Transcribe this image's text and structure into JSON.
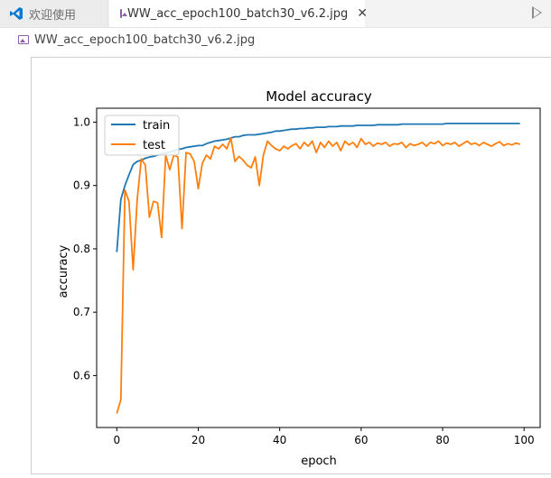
{
  "tabs": [
    {
      "label": "欢迎使用",
      "icon": "vscode-logo-icon",
      "active": false
    },
    {
      "label": "WW_acc_epoch100_batch30_v6.2.jpg",
      "icon": "image-file-icon",
      "active": true
    }
  ],
  "breadcrumb": {
    "label": "WW_acc_epoch100_batch30_v6.2.jpg"
  },
  "colors": {
    "train": "#1f77b4",
    "test": "#ff7f0e",
    "accent": "#0078d4"
  },
  "chart_data": {
    "type": "line",
    "title": "Model accuracy",
    "xlabel": "epoch",
    "ylabel": "accuracy",
    "xlim": [
      -4.95,
      103.95
    ],
    "ylim": [
      0.518,
      1.022
    ],
    "xticks": [
      0,
      20,
      40,
      60,
      80,
      100
    ],
    "yticks": [
      0.6,
      0.7,
      0.8,
      0.9,
      1.0
    ],
    "xtick_labels": [
      "0",
      "20",
      "40",
      "60",
      "80",
      "100"
    ],
    "ytick_labels": [
      "0.6",
      "0.7",
      "0.8",
      "0.9",
      "1.0"
    ],
    "legend": "top-left",
    "grid": false,
    "x": [
      0,
      1,
      2,
      3,
      4,
      5,
      6,
      7,
      8,
      9,
      10,
      11,
      12,
      13,
      14,
      15,
      16,
      17,
      18,
      19,
      20,
      21,
      22,
      23,
      24,
      25,
      26,
      27,
      28,
      29,
      30,
      31,
      32,
      33,
      34,
      35,
      36,
      37,
      38,
      39,
      40,
      41,
      42,
      43,
      44,
      45,
      46,
      47,
      48,
      49,
      50,
      51,
      52,
      53,
      54,
      55,
      56,
      57,
      58,
      59,
      60,
      61,
      62,
      63,
      64,
      65,
      66,
      67,
      68,
      69,
      70,
      71,
      72,
      73,
      74,
      75,
      76,
      77,
      78,
      79,
      80,
      81,
      82,
      83,
      84,
      85,
      86,
      87,
      88,
      89,
      90,
      91,
      92,
      93,
      94,
      95,
      96,
      97,
      98,
      99
    ],
    "series": [
      {
        "name": "train",
        "values": [
          0.795,
          0.878,
          0.9,
          0.917,
          0.933,
          0.938,
          0.94,
          0.943,
          0.945,
          0.946,
          0.948,
          0.95,
          0.951,
          0.953,
          0.955,
          0.957,
          0.958,
          0.96,
          0.961,
          0.962,
          0.963,
          0.963,
          0.966,
          0.968,
          0.97,
          0.971,
          0.972,
          0.973,
          0.975,
          0.977,
          0.977,
          0.979,
          0.98,
          0.98,
          0.98,
          0.981,
          0.982,
          0.983,
          0.984,
          0.986,
          0.986,
          0.987,
          0.988,
          0.989,
          0.989,
          0.99,
          0.99,
          0.991,
          0.991,
          0.992,
          0.992,
          0.992,
          0.993,
          0.993,
          0.993,
          0.994,
          0.994,
          0.994,
          0.994,
          0.995,
          0.995,
          0.995,
          0.995,
          0.995,
          0.996,
          0.996,
          0.996,
          0.996,
          0.996,
          0.996,
          0.997,
          0.997,
          0.997,
          0.997,
          0.997,
          0.997,
          0.997,
          0.997,
          0.997,
          0.997,
          0.997,
          0.998,
          0.998,
          0.998,
          0.998,
          0.998,
          0.998,
          0.998,
          0.998,
          0.998,
          0.998,
          0.998,
          0.998,
          0.998,
          0.998,
          0.998,
          0.998,
          0.998,
          0.998,
          0.998
        ]
      },
      {
        "name": "test",
        "values": [
          0.54,
          0.562,
          0.893,
          0.875,
          0.767,
          0.878,
          0.942,
          0.932,
          0.85,
          0.875,
          0.873,
          0.818,
          0.948,
          0.925,
          0.948,
          0.945,
          0.832,
          0.952,
          0.95,
          0.938,
          0.895,
          0.935,
          0.948,
          0.942,
          0.962,
          0.958,
          0.965,
          0.958,
          0.975,
          0.938,
          0.946,
          0.94,
          0.932,
          0.928,
          0.945,
          0.9,
          0.948,
          0.97,
          0.963,
          0.958,
          0.955,
          0.962,
          0.958,
          0.963,
          0.966,
          0.958,
          0.968,
          0.962,
          0.97,
          0.952,
          0.968,
          0.96,
          0.97,
          0.962,
          0.968,
          0.955,
          0.97,
          0.964,
          0.968,
          0.96,
          0.974,
          0.965,
          0.968,
          0.962,
          0.967,
          0.965,
          0.968,
          0.962,
          0.966,
          0.965,
          0.968,
          0.96,
          0.966,
          0.963,
          0.965,
          0.968,
          0.962,
          0.968,
          0.966,
          0.97,
          0.963,
          0.967,
          0.965,
          0.968,
          0.962,
          0.966,
          0.97,
          0.965,
          0.967,
          0.963,
          0.968,
          0.965,
          0.962,
          0.966,
          0.969,
          0.963,
          0.966,
          0.964,
          0.967,
          0.965
        ]
      }
    ]
  }
}
